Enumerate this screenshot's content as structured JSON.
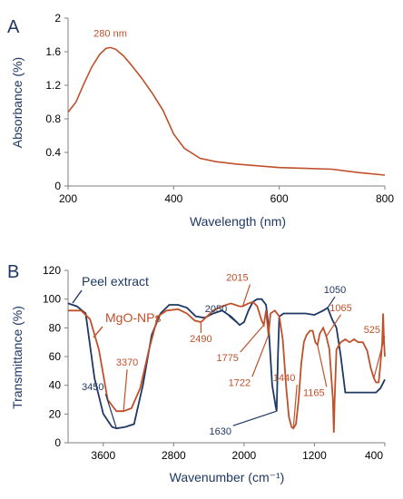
{
  "colors": {
    "navy": "#1f3864",
    "orange": "#c0502a",
    "axis": "#7f7f7f"
  },
  "chart_data": [
    {
      "panel": "A",
      "type": "line",
      "xlabel": "Wavelength (nm)",
      "ylabel": "Absorbance (%)",
      "xlim": [
        200,
        800
      ],
      "ylim": [
        0,
        2
      ],
      "xticks": [
        "200",
        "400",
        "600",
        "800"
      ],
      "yticks": [
        "0",
        "0.4",
        "0.8",
        "1.2",
        "1.6",
        "2"
      ],
      "grid": false,
      "series": [
        {
          "color": "#c0502a",
          "points": [
            [
              200,
              0.88
            ],
            [
              215,
              1.0
            ],
            [
              230,
              1.22
            ],
            [
              245,
              1.42
            ],
            [
              260,
              1.57
            ],
            [
              272,
              1.64
            ],
            [
              280,
              1.65
            ],
            [
              290,
              1.63
            ],
            [
              305,
              1.55
            ],
            [
              320,
              1.44
            ],
            [
              340,
              1.28
            ],
            [
              360,
              1.1
            ],
            [
              380,
              0.9
            ],
            [
              400,
              0.62
            ],
            [
              420,
              0.45
            ],
            [
              450,
              0.33
            ],
            [
              480,
              0.29
            ],
            [
              520,
              0.26
            ],
            [
              560,
              0.24
            ],
            [
              600,
              0.22
            ],
            [
              650,
              0.21
            ],
            [
              700,
              0.2
            ],
            [
              750,
              0.16
            ],
            [
              800,
              0.13
            ]
          ]
        }
      ],
      "annotations": [
        {
          "text": "280 nm",
          "x": 280,
          "y": 1.65
        }
      ]
    },
    {
      "panel": "B",
      "type": "line",
      "xlabel": "Wavenumber (cm⁻¹)",
      "ylabel": "Transmittance (%)",
      "xlim": [
        4000,
        400
      ],
      "ylim": [
        0,
        120
      ],
      "xticks": [
        "3600",
        "2800",
        "2000",
        "1200",
        "400"
      ],
      "xtick_values": [
        3600,
        2800,
        2000,
        1200,
        400
      ],
      "yticks": [
        "0",
        "20",
        "40",
        "60",
        "80",
        "100",
        "120"
      ],
      "grid": false,
      "series": [
        {
          "name": "Peel extract",
          "color": "#1f3864",
          "points": [
            [
              4000,
              97
            ],
            [
              3900,
              95
            ],
            [
              3800,
              90
            ],
            [
              3700,
              45
            ],
            [
              3600,
              20
            ],
            [
              3500,
              11
            ],
            [
              3450,
              10
            ],
            [
              3350,
              11
            ],
            [
              3250,
              13
            ],
            [
              3150,
              40
            ],
            [
              3050,
              75
            ],
            [
              2950,
              90
            ],
            [
              2850,
              96
            ],
            [
              2750,
              96
            ],
            [
              2650,
              94
            ],
            [
              2550,
              88
            ],
            [
              2450,
              87
            ],
            [
              2350,
              90
            ],
            [
              2250,
              92
            ],
            [
              2150,
              88
            ],
            [
              2100,
              85
            ],
            [
              2050,
              82
            ],
            [
              2000,
              84
            ],
            [
              1950,
              92
            ],
            [
              1900,
              98
            ],
            [
              1850,
              100
            ],
            [
              1800,
              100
            ],
            [
              1750,
              96
            ],
            [
              1720,
              80
            ],
            [
              1680,
              40
            ],
            [
              1640,
              25
            ],
            [
              1630,
              22
            ],
            [
              1615,
              60
            ],
            [
              1600,
              88
            ],
            [
              1550,
              90
            ],
            [
              1500,
              90
            ],
            [
              1400,
              90
            ],
            [
              1300,
              90
            ],
            [
              1200,
              89
            ],
            [
              1100,
              92
            ],
            [
              1050,
              94
            ],
            [
              1000,
              86
            ],
            [
              950,
              80
            ],
            [
              900,
              60
            ],
            [
              850,
              35
            ],
            [
              800,
              35
            ],
            [
              700,
              35
            ],
            [
              600,
              35
            ],
            [
              500,
              35
            ],
            [
              450,
              38
            ],
            [
              400,
              44
            ]
          ]
        },
        {
          "name": "MgO-NPs",
          "color": "#c0502a",
          "points": [
            [
              4000,
              92
            ],
            [
              3850,
              92
            ],
            [
              3750,
              86
            ],
            [
              3650,
              65
            ],
            [
              3550,
              30
            ],
            [
              3450,
              22
            ],
            [
              3370,
              22
            ],
            [
              3280,
              24
            ],
            [
              3180,
              38
            ],
            [
              3080,
              65
            ],
            [
              2980,
              88
            ],
            [
              2880,
              92
            ],
            [
              2750,
              93
            ],
            [
              2650,
              90
            ],
            [
              2560,
              85
            ],
            [
              2490,
              84
            ],
            [
              2420,
              88
            ],
            [
              2350,
              92
            ],
            [
              2250,
              95
            ],
            [
              2150,
              97
            ],
            [
              2050,
              95
            ],
            [
              2015,
              95
            ],
            [
              1950,
              97
            ],
            [
              1900,
              98
            ],
            [
              1850,
              95
            ],
            [
              1800,
              85
            ],
            [
              1775,
              82
            ],
            [
              1750,
              92
            ],
            [
              1722,
              75
            ],
            [
              1700,
              90
            ],
            [
              1650,
              92
            ],
            [
              1600,
              88
            ],
            [
              1560,
              72
            ],
            [
              1520,
              38
            ],
            [
              1490,
              18
            ],
            [
              1460,
              11
            ],
            [
              1440,
              10
            ],
            [
              1410,
              13
            ],
            [
              1380,
              30
            ],
            [
              1350,
              55
            ],
            [
              1320,
              70
            ],
            [
              1290,
              75
            ],
            [
              1250,
              78
            ],
            [
              1220,
              78
            ],
            [
              1190,
              70
            ],
            [
              1165,
              68
            ],
            [
              1140,
              76
            ],
            [
              1100,
              80
            ],
            [
              1065,
              74
            ],
            [
              1030,
              65
            ],
            [
              990,
              30
            ],
            [
              980,
              7
            ],
            [
              970,
              30
            ],
            [
              950,
              65
            ],
            [
              900,
              70
            ],
            [
              850,
              72
            ],
            [
              800,
              70
            ],
            [
              750,
              72
            ],
            [
              700,
              70
            ],
            [
              650,
              70
            ],
            [
              600,
              64
            ],
            [
              560,
              52
            ],
            [
              525,
              45
            ],
            [
              500,
              42
            ],
            [
              470,
              42
            ],
            [
              450,
              55
            ],
            [
              430,
              70
            ],
            [
              420,
              90
            ],
            [
              410,
              72
            ],
            [
              400,
              60
            ]
          ]
        }
      ],
      "annotations": [
        {
          "text": "3450",
          "color": "#1f3864",
          "x": 3450,
          "y": 10
        },
        {
          "text": "3370",
          "color": "#c0502a",
          "x": 3370,
          "y": 22
        },
        {
          "text": "2050",
          "color": "#1f3864",
          "x": 2050,
          "y": 82
        },
        {
          "text": "2015",
          "color": "#c0502a",
          "x": 2015,
          "y": 95
        },
        {
          "text": "2490",
          "color": "#c0502a",
          "x": 2490,
          "y": 84
        },
        {
          "text": "1775",
          "color": "#c0502a",
          "x": 1775,
          "y": 82
        },
        {
          "text": "1722",
          "color": "#c0502a",
          "x": 1722,
          "y": 75
        },
        {
          "text": "1630",
          "color": "#1f3864",
          "x": 1630,
          "y": 22
        },
        {
          "text": "1440",
          "color": "#c0502a",
          "x": 1440,
          "y": 10
        },
        {
          "text": "1165",
          "color": "#c0502a",
          "x": 1165,
          "y": 68
        },
        {
          "text": "1050",
          "color": "#1f3864",
          "x": 1050,
          "y": 94
        },
        {
          "text": "1065",
          "color": "#c0502a",
          "x": 1065,
          "y": 74
        },
        {
          "text": "525",
          "color": "#c0502a",
          "x": 525,
          "y": 45
        }
      ]
    }
  ]
}
